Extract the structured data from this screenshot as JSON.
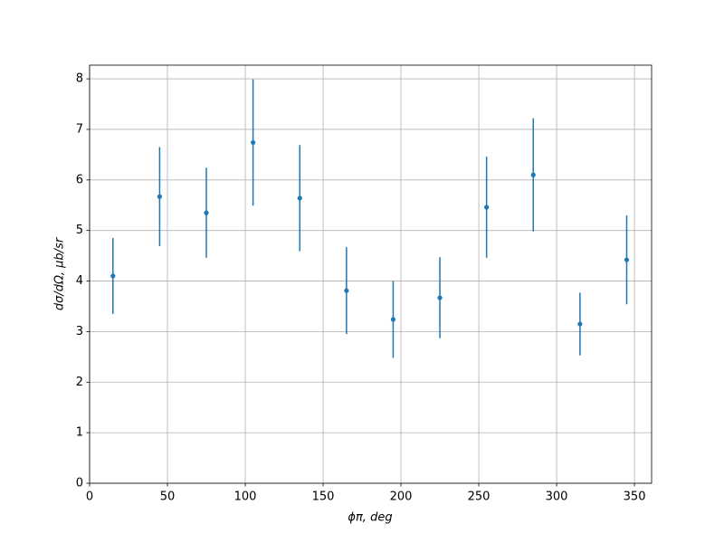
{
  "chart_data": {
    "type": "errorbar",
    "xlabel": "ϕπ, deg",
    "ylabel": "dσ/dΩ, μb/sr",
    "x": [
      15,
      45,
      75,
      105,
      135,
      165,
      195,
      225,
      255,
      285,
      315,
      345
    ],
    "series": [
      {
        "color": "#1f77b4",
        "values": [
          4.1,
          5.67,
          5.35,
          6.74,
          5.64,
          3.81,
          3.24,
          3.67,
          5.46,
          6.1,
          3.15,
          4.42
        ],
        "errors": [
          0.75,
          0.98,
          0.89,
          1.25,
          1.05,
          0.86,
          0.76,
          0.8,
          1.0,
          1.12,
          0.62,
          0.88
        ]
      }
    ],
    "xlim": [
      0,
      361
    ],
    "xticks": [
      0,
      50,
      100,
      150,
      200,
      250,
      300,
      350
    ],
    "ylim": [
      0,
      8.27
    ],
    "yticks": [
      0,
      1,
      2,
      3,
      4,
      5,
      6,
      7,
      8
    ],
    "grid": true
  }
}
